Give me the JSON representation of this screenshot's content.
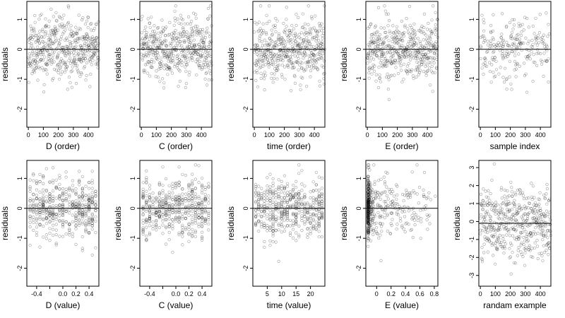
{
  "chart_data": [
    {
      "type": "scatter",
      "xlabel": "D (order)",
      "ylabel": "residuals",
      "xlim": [
        -10,
        470
      ],
      "ylim": [
        -2.6,
        1.6
      ],
      "xticks": [
        0,
        100,
        200,
        300,
        400
      ],
      "yticks": [
        -2,
        -1,
        0,
        1
      ],
      "hline": 0,
      "seed": 11,
      "n": 470,
      "xgen": {
        "mode": "index",
        "max": 470
      },
      "ygen": {
        "mode": "normal",
        "sd": 0.5,
        "min": -2.5,
        "max": 1.45
      }
    },
    {
      "type": "scatter",
      "xlabel": "C (order)",
      "ylabel": "residuals",
      "xlim": [
        -10,
        470
      ],
      "ylim": [
        -2.6,
        1.6
      ],
      "xticks": [
        0,
        100,
        200,
        300,
        400
      ],
      "yticks": [
        -2,
        -1,
        0,
        1
      ],
      "hline": 0,
      "seed": 23,
      "n": 470,
      "xgen": {
        "mode": "index",
        "max": 470
      },
      "ygen": {
        "mode": "normal",
        "sd": 0.5,
        "min": -2.5,
        "max": 1.45
      }
    },
    {
      "type": "scatter",
      "xlabel": "time (order)",
      "ylabel": "residuals",
      "xlim": [
        -10,
        470
      ],
      "ylim": [
        -2.6,
        1.6
      ],
      "xticks": [
        0,
        100,
        200,
        300,
        400
      ],
      "yticks": [
        -2,
        -1,
        0,
        1
      ],
      "hline": 0,
      "seed": 37,
      "n": 470,
      "xgen": {
        "mode": "index",
        "max": 470
      },
      "ygen": {
        "mode": "normal",
        "sd": 0.5,
        "min": -2.5,
        "max": 1.45
      }
    },
    {
      "type": "scatter",
      "xlabel": "E (order)",
      "ylabel": "residuals",
      "xlim": [
        -10,
        470
      ],
      "ylim": [
        -2.6,
        1.6
      ],
      "xticks": [
        0,
        100,
        200,
        300,
        400
      ],
      "yticks": [
        -2,
        -1,
        0,
        1
      ],
      "hline": 0,
      "seed": 41,
      "n": 470,
      "xgen": {
        "mode": "index",
        "max": 470
      },
      "ygen": {
        "mode": "normal",
        "sd": 0.5,
        "min": -2.5,
        "max": 1.45
      }
    },
    {
      "type": "scatter",
      "xlabel": "sample index",
      "ylabel": "residuals",
      "xlim": [
        -10,
        470
      ],
      "ylim": [
        -2.6,
        1.6
      ],
      "xticks": [
        0,
        100,
        200,
        300,
        400
      ],
      "yticks": [
        -2,
        -1,
        0,
        1
      ],
      "hline": 0,
      "seed": 53,
      "n": 230,
      "xgen": {
        "mode": "uniform",
        "min": 0,
        "max": 470
      },
      "ygen": {
        "mode": "normal",
        "sd": 0.5,
        "min": -2.5,
        "max": 1.45
      }
    },
    {
      "type": "scatter",
      "xlabel": "D (value)",
      "ylabel": "residuals",
      "xlim": [
        -0.55,
        0.55
      ],
      "ylim": [
        -2.6,
        1.6
      ],
      "xticks": [
        -0.4,
        -0.2,
        0,
        0.2,
        0.4
      ],
      "xtick_labels": [
        "-0.4",
        "",
        "0.0",
        "0.2",
        "0.4"
      ],
      "yticks": [
        -2,
        -1,
        0,
        1
      ],
      "hline": 0,
      "seed": 61,
      "n": 470,
      "xgen": {
        "mode": "discrete",
        "min": -0.5,
        "max": 0.5,
        "step": 0.05,
        "jitter": 0
      },
      "ygen": {
        "mode": "normal",
        "sd": 0.5,
        "min": -2.5,
        "max": 1.45
      }
    },
    {
      "type": "scatter",
      "xlabel": "C (value)",
      "ylabel": "residuals",
      "xlim": [
        -0.55,
        0.55
      ],
      "ylim": [
        -2.6,
        1.6
      ],
      "xticks": [
        -0.4,
        -0.2,
        0,
        0.2,
        0.4
      ],
      "xtick_labels": [
        "-0.4",
        "",
        "0.0",
        "0.2",
        "0.4"
      ],
      "yticks": [
        -2,
        -1,
        0,
        1
      ],
      "hline": 0,
      "seed": 71,
      "n": 470,
      "xgen": {
        "mode": "discrete",
        "min": -0.5,
        "max": 0.5,
        "step": 0.05,
        "jitter": 0
      },
      "ygen": {
        "mode": "normal",
        "sd": 0.5,
        "min": -2.5,
        "max": 1.45
      }
    },
    {
      "type": "scatter",
      "xlabel": "time (value)",
      "ylabel": "residuals",
      "xlim": [
        0,
        25
      ],
      "ylim": [
        -2.6,
        1.6
      ],
      "xticks": [
        5,
        10,
        15,
        20
      ],
      "yticks": [
        -2,
        -1,
        0,
        1
      ],
      "hline": 0,
      "seed": 83,
      "n": 470,
      "xgen": {
        "mode": "discrete",
        "min": 1,
        "max": 24,
        "step": 1,
        "jitter": 0
      },
      "ygen": {
        "mode": "normal",
        "sd": 0.5,
        "min": -2.5,
        "max": 1.45
      }
    },
    {
      "type": "scatter",
      "xlabel": "E (value)",
      "ylabel": "residuals",
      "xlim": [
        -0.15,
        0.85
      ],
      "ylim": [
        -2.6,
        1.6
      ],
      "xticks": [
        0,
        0.2,
        0.4,
        0.6,
        0.8
      ],
      "yticks": [
        -2,
        -1,
        0,
        1
      ],
      "hline": 0,
      "seed": 97,
      "n": 470,
      "xgen": {
        "mode": "skew",
        "min": -0.12,
        "max": 0.82,
        "power": 4
      },
      "ygen": {
        "mode": "normal",
        "sd": 0.5,
        "min": -2.5,
        "max": 1.45
      }
    },
    {
      "type": "scatter",
      "xlabel": "randam example",
      "ylabel": "residuals",
      "xlim": [
        -10,
        470
      ],
      "ylim": [
        -3.6,
        3.4
      ],
      "xticks": [
        0,
        100,
        200,
        300,
        400
      ],
      "yticks": [
        -3,
        -2,
        -1,
        0,
        1,
        2,
        3
      ],
      "hline": -0.1,
      "seed": 101,
      "n": 470,
      "xgen": {
        "mode": "index",
        "max": 470
      },
      "ygen": {
        "mode": "normal",
        "sd": 1.0,
        "min": -3.5,
        "max": 3.2
      }
    }
  ]
}
